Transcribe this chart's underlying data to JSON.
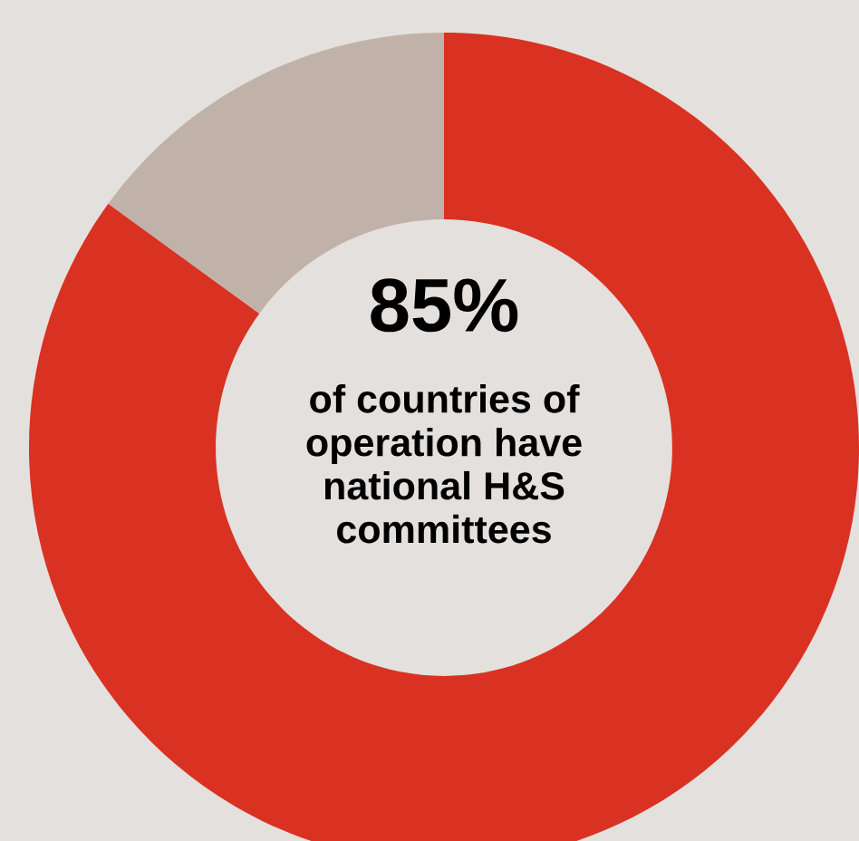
{
  "chart_data": {
    "type": "donut",
    "categories": [
      null,
      null
    ],
    "values": [
      85,
      15
    ],
    "colors": [
      "#d93222",
      "#c0b2a9"
    ],
    "annotations": [
      "85%",
      "of countries of\noperation have\nnational H&S\ncommittees"
    ],
    "legend": false
  }
}
